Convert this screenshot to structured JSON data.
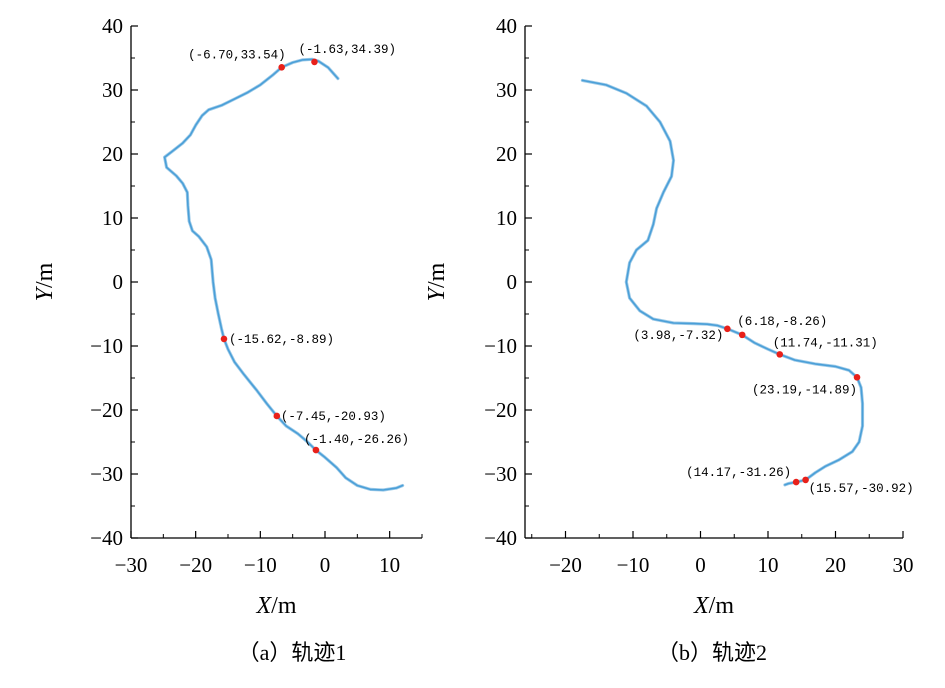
{
  "chart_data": [
    {
      "type": "line",
      "caption": "（a）轨迹1",
      "xlabel_var": "X",
      "xlabel_unit": "/m",
      "ylabel_var": "Y",
      "ylabel_unit": "/m",
      "xlim": [
        -30,
        15
      ],
      "ylim": [
        -40,
        40
      ],
      "xticks": [
        -30,
        -20,
        -10,
        0,
        10
      ],
      "yticks": [
        -40,
        -30,
        -20,
        -10,
        0,
        10,
        20,
        30,
        40
      ],
      "series": [
        {
          "color": "#4a9fd8",
          "x": [
            2,
            0.5,
            -1,
            -2,
            -3.5,
            -5,
            -6.7,
            -8,
            -10,
            -12,
            -14,
            -16,
            -18,
            -19,
            -20,
            -20.8,
            -22,
            -23.5,
            -24.8,
            -24.5,
            -23,
            -22,
            -21.3,
            -21.2,
            -21,
            -20.5,
            -19.5,
            -18.3,
            -17.6,
            -17.3,
            -17,
            -16.5,
            -16,
            -15.62,
            -15,
            -14,
            -12.5,
            -10.5,
            -9,
            -7.45,
            -6,
            -4.2,
            -2.8,
            -1.4,
            0,
            1.8,
            3.2,
            5,
            7,
            9,
            11,
            12
          ],
          "y": [
            31.8,
            33.5,
            34.5,
            34.8,
            34.7,
            34.3,
            33.54,
            32.4,
            30.8,
            29.6,
            28.6,
            27.6,
            26.9,
            26,
            24.5,
            23,
            21.7,
            20.5,
            19.5,
            17.9,
            16.6,
            15.4,
            14,
            12,
            9.5,
            8,
            7.1,
            5.5,
            3.5,
            0,
            -2.5,
            -5,
            -7.3,
            -8.89,
            -10.5,
            -12.5,
            -14.5,
            -17,
            -19,
            -20.93,
            -22.5,
            -23.7,
            -24.9,
            -26.26,
            -27.4,
            -29,
            -30.6,
            -31.8,
            -32.4,
            -32.5,
            -32.2,
            -31.8
          ]
        }
      ],
      "markers": [
        {
          "x": -6.7,
          "y": 33.54,
          "label": "(-6.70,33.54)",
          "anchor": "end",
          "dx": 4,
          "dy": -9
        },
        {
          "x": -1.63,
          "y": 34.39,
          "label": "(-1.63,34.39)",
          "anchor": "start",
          "dx": -16,
          "dy": -9
        },
        {
          "x": -15.62,
          "y": -8.89,
          "label": "(-15.62,-8.89)",
          "anchor": "start",
          "dx": 5,
          "dy": 4
        },
        {
          "x": -7.45,
          "y": -20.93,
          "label": "(-7.45,-20.93)",
          "anchor": "start",
          "dx": 4,
          "dy": 4
        },
        {
          "x": -1.4,
          "y": -26.26,
          "label": "(-1.40,-26.26)",
          "anchor": "start",
          "dx": -12,
          "dy": -7
        }
      ]
    },
    {
      "type": "line",
      "caption": "（b）轨迹2",
      "xlabel_var": "X",
      "xlabel_unit": "/m",
      "ylabel_var": "Y",
      "ylabel_unit": "/m",
      "xlim": [
        -26,
        30
      ],
      "ylim": [
        -40,
        40
      ],
      "xticks": [
        -20,
        -10,
        0,
        10,
        20,
        30
      ],
      "yticks": [
        -40,
        -30,
        -20,
        -10,
        0,
        10,
        20,
        30,
        40
      ],
      "series": [
        {
          "color": "#4a9fd8",
          "x": [
            -17.5,
            -14,
            -11,
            -8,
            -6,
            -4.5,
            -4,
            -4.3,
            -5.5,
            -6.5,
            -7,
            -7.8,
            -9.5,
            -10.5,
            -11,
            -10.5,
            -9,
            -7,
            -4,
            -1,
            1,
            2.5,
            3.98,
            6.18,
            8,
            10,
            11.74,
            14,
            17,
            20,
            22,
            23.19,
            23.8,
            24,
            24,
            23.5,
            22.5,
            20.5,
            18.5,
            17,
            15.57,
            14.17,
            13,
            12.5
          ],
          "y": [
            31.5,
            30.8,
            29.5,
            27.5,
            25,
            22,
            19,
            16.5,
            14,
            11.5,
            9,
            6.5,
            5,
            3,
            0,
            -2.5,
            -4.5,
            -5.8,
            -6.4,
            -6.5,
            -6.6,
            -6.8,
            -7.32,
            -8.26,
            -9.5,
            -10.5,
            -11.31,
            -12.2,
            -12.8,
            -13.2,
            -13.8,
            -14.89,
            -16.5,
            -19,
            -22.5,
            -25,
            -26.5,
            -27.8,
            -28.8,
            -29.8,
            -30.92,
            -31.26,
            -31.5,
            -31.7
          ]
        }
      ],
      "markers": [
        {
          "x": 3.98,
          "y": -7.32,
          "label": "(3.98,-7.32)",
          "anchor": "end",
          "dx": -4,
          "dy": 10
        },
        {
          "x": 6.18,
          "y": -8.26,
          "label": "(6.18,-8.26)",
          "anchor": "start",
          "dx": -5,
          "dy": -10
        },
        {
          "x": 11.74,
          "y": -11.31,
          "label": "(11.74,-11.31)",
          "anchor": "start",
          "dx": -7,
          "dy": -8
        },
        {
          "x": 23.19,
          "y": -14.89,
          "label": "(23.19,-14.89)",
          "anchor": "end",
          "dx": 0,
          "dy": 16
        },
        {
          "x": 14.17,
          "y": -31.26,
          "label": "(14.17,-31.26)",
          "anchor": "end",
          "dx": -5,
          "dy": -6
        },
        {
          "x": 15.57,
          "y": -30.92,
          "label": "(15.57,-30.92)",
          "anchor": "start",
          "dx": 3,
          "dy": 12
        }
      ]
    }
  ]
}
